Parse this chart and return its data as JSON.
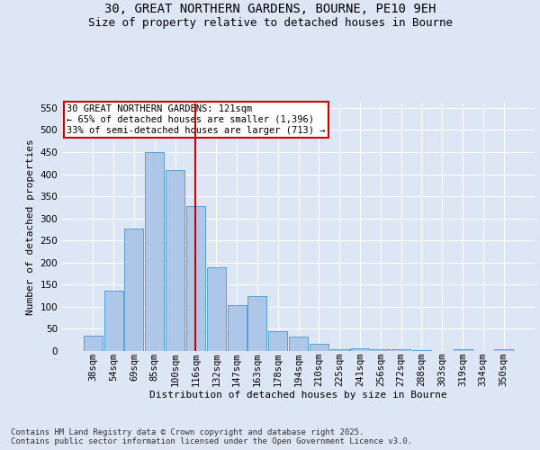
{
  "title_line1": "30, GREAT NORTHERN GARDENS, BOURNE, PE10 9EH",
  "title_line2": "Size of property relative to detached houses in Bourne",
  "xlabel": "Distribution of detached houses by size in Bourne",
  "ylabel": "Number of detached properties",
  "categories": [
    "38sqm",
    "54sqm",
    "69sqm",
    "85sqm",
    "100sqm",
    "116sqm",
    "132sqm",
    "147sqm",
    "163sqm",
    "178sqm",
    "194sqm",
    "210sqm",
    "225sqm",
    "241sqm",
    "256sqm",
    "272sqm",
    "288sqm",
    "303sqm",
    "319sqm",
    "334sqm",
    "350sqm"
  ],
  "values": [
    35,
    137,
    277,
    450,
    410,
    327,
    190,
    103,
    125,
    45,
    32,
    17,
    5,
    7,
    4,
    4,
    2,
    0,
    4,
    0,
    4
  ],
  "bar_color": "#aec6e8",
  "bar_edge_color": "#5a9fd4",
  "vline_x": 5,
  "vline_color": "#cc0000",
  "annotation_text": "30 GREAT NORTHERN GARDENS: 121sqm\n← 65% of detached houses are smaller (1,396)\n33% of semi-detached houses are larger (713) →",
  "annotation_box_color": "#ffffff",
  "annotation_box_edge": "#cc0000",
  "ylim": [
    0,
    560
  ],
  "yticks": [
    0,
    50,
    100,
    150,
    200,
    250,
    300,
    350,
    400,
    450,
    500,
    550
  ],
  "bg_color": "#dce6f5",
  "plot_bg": "#dce6f5",
  "footer": "Contains HM Land Registry data © Crown copyright and database right 2025.\nContains public sector information licensed under the Open Government Licence v3.0.",
  "grid_color": "#ffffff",
  "title_fontsize": 10,
  "subtitle_fontsize": 9,
  "label_fontsize": 8,
  "tick_fontsize": 7.5,
  "footer_fontsize": 6.5
}
